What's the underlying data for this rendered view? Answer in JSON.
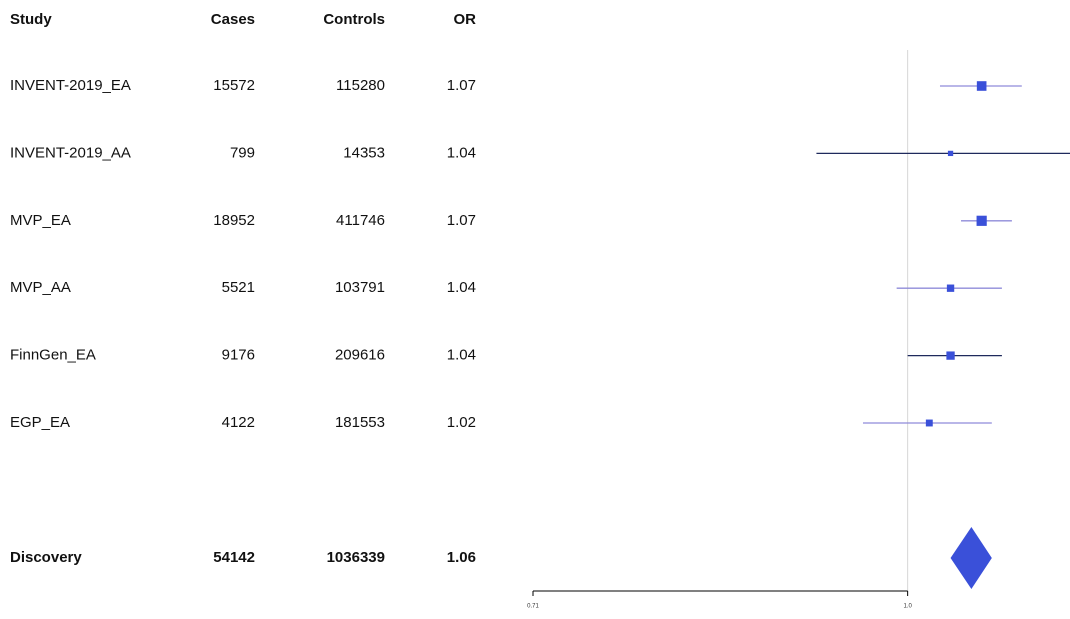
{
  "chart_data": {
    "type": "forest",
    "columns": [
      "Study",
      "Cases",
      "Controls",
      "OR"
    ],
    "studies": [
      {
        "name": "INVENT-2019_EA",
        "cases": 15572,
        "controls": 115280,
        "or": 1.07,
        "ci": [
          1.03,
          1.11
        ],
        "color": "#8f8bd9"
      },
      {
        "name": "INVENT-2019_AA",
        "cases": 799,
        "controls": 14353,
        "or": 1.04,
        "ci": [
          0.92,
          1.18
        ],
        "color": "#1f2a5c"
      },
      {
        "name": "MVP_EA",
        "cases": 18952,
        "controls": 411746,
        "or": 1.07,
        "ci": [
          1.05,
          1.1
        ],
        "color": "#8f8bd9"
      },
      {
        "name": "MVP_AA",
        "cases": 5521,
        "controls": 103791,
        "or": 1.04,
        "ci": [
          0.99,
          1.09
        ],
        "color": "#8f8bd9"
      },
      {
        "name": "FinnGen_EA",
        "cases": 9176,
        "controls": 209616,
        "or": 1.04,
        "ci": [
          1.0,
          1.09
        ],
        "color": "#1f2a5c"
      },
      {
        "name": "EGP_EA",
        "cases": 4122,
        "controls": 181553,
        "or": 1.02,
        "ci": [
          0.96,
          1.08
        ],
        "color": "#8f8bd9"
      }
    ],
    "summary": {
      "name": "Discovery",
      "cases": 54142,
      "controls": 1036339,
      "or": 1.06,
      "ci": [
        1.04,
        1.08
      ]
    },
    "box_color": "#3a50d9",
    "xlim": [
      0.71,
      1.16
    ],
    "xticks": [
      0.71,
      {
        "value": 1,
        "label": "1.0"
      }
    ],
    "log_x": true,
    "reference_line": 1
  }
}
